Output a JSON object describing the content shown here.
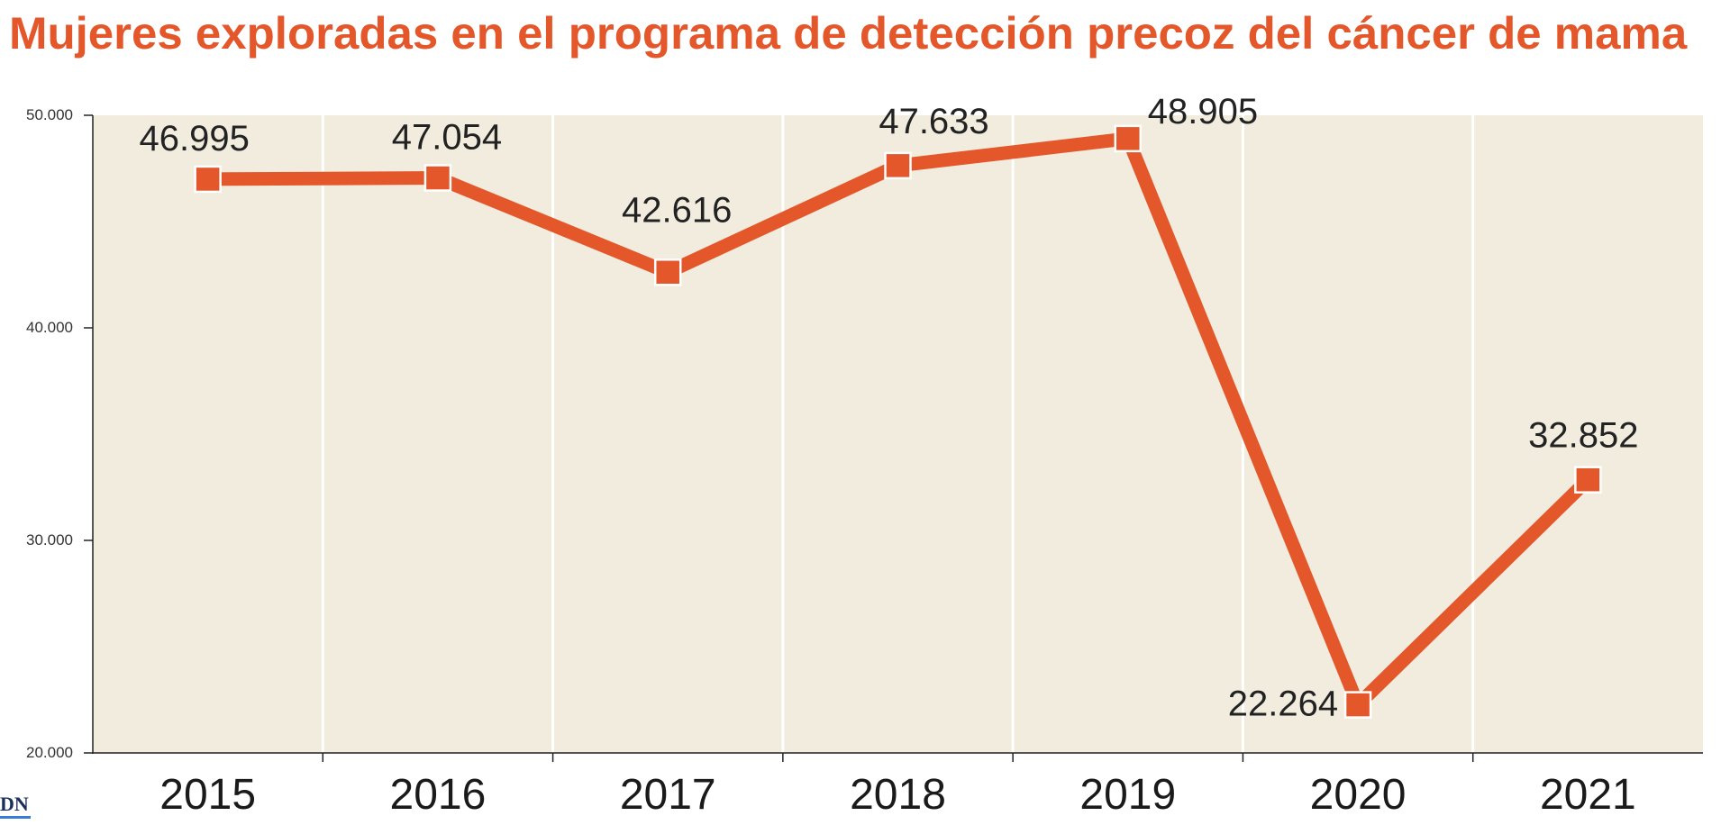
{
  "chart_data": {
    "type": "line",
    "title": "Mujeres exploradas en el programa de detección precoz del cáncer de mama",
    "categories": [
      "2015",
      "2016",
      "2017",
      "2018",
      "2019",
      "2020",
      "2021"
    ],
    "values": [
      46995,
      47054,
      42616,
      47633,
      48905,
      22264,
      32852
    ],
    "data_labels": [
      "46.995",
      "47.054",
      "42.616",
      "47.633",
      "48.905",
      "22.264",
      "32.852"
    ],
    "y_ticks": [
      20000,
      30000,
      40000,
      50000
    ],
    "y_tick_labels": [
      "20.000",
      "30.000",
      "40.000",
      "50.000"
    ],
    "ylim": [
      20000,
      50000
    ],
    "xlabel": "",
    "ylabel": "",
    "grid": "vertical",
    "colors": {
      "line": "#e4572a",
      "title": "#e4572a",
      "plot_background": "#f1ecdd",
      "gridline": "#ffffff",
      "text": "#222222"
    }
  },
  "footer": {
    "logo_text": "DN"
  }
}
